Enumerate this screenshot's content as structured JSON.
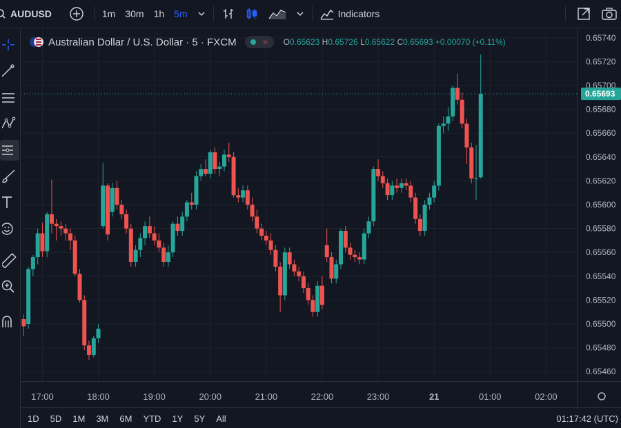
{
  "toolbar": {
    "symbol": "AUDUSD",
    "intervals": [
      "1m",
      "30m",
      "1h",
      "5m"
    ],
    "active_interval": "5m",
    "indicators_label": "Indicators"
  },
  "legend": {
    "title": "Australian Dollar / U.S. Dollar · 5 · FXCM",
    "o_key": "O",
    "o_val": "0.65623",
    "h_key": "H",
    "h_val": "0.65726",
    "l_key": "L",
    "l_val": "0.65622",
    "c_key": "C",
    "c_val": "0.65693",
    "change": "+0.00070 (+0.11%)"
  },
  "bottom": {
    "ranges": [
      "1D",
      "5D",
      "1M",
      "3M",
      "6M",
      "YTD",
      "1Y",
      "5Y",
      "All"
    ],
    "clock": "01:17:42 (UTC)"
  },
  "colors": {
    "up": "#26a69a",
    "down": "#ef5350",
    "background": "#131722",
    "grid": "#1e222d",
    "accent": "#2962ff"
  },
  "chart_data": {
    "type": "candlestick",
    "symbol": "AUDUSD",
    "interval": "5m",
    "y_range": [
      0.65452,
      0.65748
    ],
    "price_ticks": [
      "0.65740",
      "0.65720",
      "0.65700",
      "0.65680",
      "0.65660",
      "0.65640",
      "0.65620",
      "0.65600",
      "0.65580",
      "0.65560",
      "0.65540",
      "0.65520",
      "0.65500",
      "0.65480",
      "0.65460"
    ],
    "current_price": "0.65693",
    "time_ticks": [
      "17:00",
      "18:00",
      "19:00",
      "20:00",
      "21:00",
      "22:00",
      "23:00",
      "21",
      "01:00",
      "02:00"
    ],
    "time_tick_hours": [
      17,
      18,
      19,
      20,
      21,
      22,
      23,
      24,
      25,
      26
    ],
    "x_range_hours": [
      16.625,
      26.55
    ],
    "candles": [
      {
        "h": 16.667,
        "o": 0.65504,
        "hi": 0.65508,
        "l": 0.6549,
        "c": 0.65498
      },
      {
        "h": 16.75,
        "o": 0.655,
        "hi": 0.65548,
        "l": 0.65496,
        "c": 0.65546
      },
      {
        "h": 16.833,
        "o": 0.65546,
        "hi": 0.65558,
        "l": 0.6554,
        "c": 0.65556
      },
      {
        "h": 16.917,
        "o": 0.65556,
        "hi": 0.6558,
        "l": 0.6555,
        "c": 0.65576
      },
      {
        "h": 17.0,
        "o": 0.65576,
        "hi": 0.65585,
        "l": 0.65556,
        "c": 0.65561
      },
      {
        "h": 17.083,
        "o": 0.65561,
        "hi": 0.65594,
        "l": 0.65556,
        "c": 0.65592
      },
      {
        "h": 17.167,
        "o": 0.65592,
        "hi": 0.65621,
        "l": 0.65576,
        "c": 0.65584
      },
      {
        "h": 17.25,
        "o": 0.65584,
        "hi": 0.65588,
        "l": 0.6557,
        "c": 0.65582
      },
      {
        "h": 17.333,
        "o": 0.65582,
        "hi": 0.65586,
        "l": 0.65574,
        "c": 0.6558
      },
      {
        "h": 17.417,
        "o": 0.6558,
        "hi": 0.65584,
        "l": 0.6557,
        "c": 0.65576
      },
      {
        "h": 17.5,
        "o": 0.65576,
        "hi": 0.6558,
        "l": 0.65562,
        "c": 0.6557
      },
      {
        "h": 17.583,
        "o": 0.6557,
        "hi": 0.65574,
        "l": 0.6554,
        "c": 0.65542
      },
      {
        "h": 17.667,
        "o": 0.65542,
        "hi": 0.65546,
        "l": 0.65518,
        "c": 0.6552
      },
      {
        "h": 17.75,
        "o": 0.6552,
        "hi": 0.65524,
        "l": 0.65478,
        "c": 0.65482
      },
      {
        "h": 17.833,
        "o": 0.65482,
        "hi": 0.65486,
        "l": 0.6547,
        "c": 0.65474
      },
      {
        "h": 17.917,
        "o": 0.65474,
        "hi": 0.6549,
        "l": 0.65472,
        "c": 0.65488
      },
      {
        "h": 18.0,
        "o": 0.65488,
        "hi": 0.655,
        "l": 0.65484,
        "c": 0.65496
      },
      {
        "h": 18.083,
        "o": 0.65582,
        "hi": 0.65635,
        "l": 0.6558,
        "c": 0.65616
      },
      {
        "h": 18.167,
        "o": 0.65616,
        "hi": 0.65618,
        "l": 0.6557,
        "c": 0.65575
      },
      {
        "h": 18.25,
        "o": 0.65594,
        "hi": 0.65618,
        "l": 0.6559,
        "c": 0.65614
      },
      {
        "h": 18.333,
        "o": 0.65614,
        "hi": 0.6562,
        "l": 0.65596,
        "c": 0.656
      },
      {
        "h": 18.417,
        "o": 0.656,
        "hi": 0.65604,
        "l": 0.65588,
        "c": 0.65592
      },
      {
        "h": 18.5,
        "o": 0.65592,
        "hi": 0.65596,
        "l": 0.65576,
        "c": 0.6558
      },
      {
        "h": 18.583,
        "o": 0.6558,
        "hi": 0.65584,
        "l": 0.65548,
        "c": 0.65552
      },
      {
        "h": 18.667,
        "o": 0.65552,
        "hi": 0.65566,
        "l": 0.65548,
        "c": 0.65562
      },
      {
        "h": 18.75,
        "o": 0.65562,
        "hi": 0.65576,
        "l": 0.65556,
        "c": 0.65572
      },
      {
        "h": 18.833,
        "o": 0.65572,
        "hi": 0.65586,
        "l": 0.65566,
        "c": 0.65582
      },
      {
        "h": 18.917,
        "o": 0.65582,
        "hi": 0.6559,
        "l": 0.65572,
        "c": 0.65576
      },
      {
        "h": 19.0,
        "o": 0.65576,
        "hi": 0.65582,
        "l": 0.65566,
        "c": 0.6557
      },
      {
        "h": 19.083,
        "o": 0.6557,
        "hi": 0.65576,
        "l": 0.6556,
        "c": 0.65564
      },
      {
        "h": 19.167,
        "o": 0.65564,
        "hi": 0.65568,
        "l": 0.65548,
        "c": 0.65552
      },
      {
        "h": 19.25,
        "o": 0.65552,
        "hi": 0.65566,
        "l": 0.65548,
        "c": 0.6556
      },
      {
        "h": 19.333,
        "o": 0.6556,
        "hi": 0.65586,
        "l": 0.65556,
        "c": 0.65584
      },
      {
        "h": 19.417,
        "o": 0.65584,
        "hi": 0.6559,
        "l": 0.65574,
        "c": 0.65578
      },
      {
        "h": 19.5,
        "o": 0.65578,
        "hi": 0.65594,
        "l": 0.65574,
        "c": 0.6559
      },
      {
        "h": 19.583,
        "o": 0.6559,
        "hi": 0.65604,
        "l": 0.65586,
        "c": 0.65602
      },
      {
        "h": 19.667,
        "o": 0.65602,
        "hi": 0.6561,
        "l": 0.65596,
        "c": 0.656
      },
      {
        "h": 19.75,
        "o": 0.656,
        "hi": 0.65628,
        "l": 0.65596,
        "c": 0.65624
      },
      {
        "h": 19.833,
        "o": 0.65624,
        "hi": 0.65634,
        "l": 0.6562,
        "c": 0.6563
      },
      {
        "h": 19.917,
        "o": 0.6563,
        "hi": 0.65638,
        "l": 0.65624,
        "c": 0.65626
      },
      {
        "h": 20.0,
        "o": 0.65626,
        "hi": 0.65646,
        "l": 0.65622,
        "c": 0.65644
      },
      {
        "h": 20.083,
        "o": 0.65644,
        "hi": 0.65648,
        "l": 0.65626,
        "c": 0.6563
      },
      {
        "h": 20.167,
        "o": 0.6563,
        "hi": 0.65636,
        "l": 0.65624,
        "c": 0.65632
      },
      {
        "h": 20.25,
        "o": 0.65632,
        "hi": 0.65646,
        "l": 0.65628,
        "c": 0.65642
      },
      {
        "h": 20.333,
        "o": 0.65642,
        "hi": 0.65652,
        "l": 0.65636,
        "c": 0.6564
      },
      {
        "h": 20.417,
        "o": 0.6564,
        "hi": 0.65644,
        "l": 0.65606,
        "c": 0.65608
      },
      {
        "h": 20.5,
        "o": 0.65608,
        "hi": 0.65614,
        "l": 0.65602,
        "c": 0.65606
      },
      {
        "h": 20.583,
        "o": 0.65606,
        "hi": 0.65616,
        "l": 0.65602,
        "c": 0.65612
      },
      {
        "h": 20.667,
        "o": 0.65612,
        "hi": 0.65616,
        "l": 0.65596,
        "c": 0.656
      },
      {
        "h": 20.75,
        "o": 0.656,
        "hi": 0.65606,
        "l": 0.65586,
        "c": 0.6559
      },
      {
        "h": 20.833,
        "o": 0.6559,
        "hi": 0.65596,
        "l": 0.65576,
        "c": 0.6558
      },
      {
        "h": 20.917,
        "o": 0.6558,
        "hi": 0.65584,
        "l": 0.6557,
        "c": 0.65574
      },
      {
        "h": 21.0,
        "o": 0.65574,
        "hi": 0.65578,
        "l": 0.65566,
        "c": 0.6557
      },
      {
        "h": 21.083,
        "o": 0.6557,
        "hi": 0.65576,
        "l": 0.65558,
        "c": 0.65562
      },
      {
        "h": 21.167,
        "o": 0.65562,
        "hi": 0.65566,
        "l": 0.65544,
        "c": 0.65548
      },
      {
        "h": 21.25,
        "o": 0.65548,
        "hi": 0.65552,
        "l": 0.6551,
        "c": 0.65524
      },
      {
        "h": 21.333,
        "o": 0.65524,
        "hi": 0.65564,
        "l": 0.6552,
        "c": 0.6556
      },
      {
        "h": 21.417,
        "o": 0.6556,
        "hi": 0.65564,
        "l": 0.65546,
        "c": 0.6555
      },
      {
        "h": 21.5,
        "o": 0.6555,
        "hi": 0.65554,
        "l": 0.6554,
        "c": 0.65544
      },
      {
        "h": 21.583,
        "o": 0.65544,
        "hi": 0.65548,
        "l": 0.65536,
        "c": 0.6554
      },
      {
        "h": 21.667,
        "o": 0.6554,
        "hi": 0.65544,
        "l": 0.65526,
        "c": 0.6553
      },
      {
        "h": 21.75,
        "o": 0.6553,
        "hi": 0.65534,
        "l": 0.65516,
        "c": 0.6552
      },
      {
        "h": 21.833,
        "o": 0.6552,
        "hi": 0.65524,
        "l": 0.65506,
        "c": 0.6551
      },
      {
        "h": 21.917,
        "o": 0.6551,
        "hi": 0.65536,
        "l": 0.65506,
        "c": 0.65532
      },
      {
        "h": 22.0,
        "o": 0.65532,
        "hi": 0.6554,
        "l": 0.65512,
        "c": 0.65516
      },
      {
        "h": 22.083,
        "o": 0.65566,
        "hi": 0.6558,
        "l": 0.65552,
        "c": 0.65556
      },
      {
        "h": 22.167,
        "o": 0.65556,
        "hi": 0.6556,
        "l": 0.65534,
        "c": 0.65538
      },
      {
        "h": 22.25,
        "o": 0.65538,
        "hi": 0.65554,
        "l": 0.65534,
        "c": 0.6555
      },
      {
        "h": 22.333,
        "o": 0.6555,
        "hi": 0.6558,
        "l": 0.65546,
        "c": 0.65578
      },
      {
        "h": 22.417,
        "o": 0.65578,
        "hi": 0.65582,
        "l": 0.6556,
        "c": 0.65564
      },
      {
        "h": 22.5,
        "o": 0.65564,
        "hi": 0.65568,
        "l": 0.65554,
        "c": 0.65558
      },
      {
        "h": 22.583,
        "o": 0.65558,
        "hi": 0.65562,
        "l": 0.65552,
        "c": 0.65556
      },
      {
        "h": 22.667,
        "o": 0.65556,
        "hi": 0.6556,
        "l": 0.6555,
        "c": 0.65554
      },
      {
        "h": 22.75,
        "o": 0.65554,
        "hi": 0.6558,
        "l": 0.6555,
        "c": 0.65576
      },
      {
        "h": 22.833,
        "o": 0.65576,
        "hi": 0.6559,
        "l": 0.65572,
        "c": 0.65586
      },
      {
        "h": 22.917,
        "o": 0.65586,
        "hi": 0.65632,
        "l": 0.65582,
        "c": 0.6563
      },
      {
        "h": 23.0,
        "o": 0.6563,
        "hi": 0.65638,
        "l": 0.6562,
        "c": 0.65624
      },
      {
        "h": 23.083,
        "o": 0.65624,
        "hi": 0.65628,
        "l": 0.65614,
        "c": 0.65618
      },
      {
        "h": 23.167,
        "o": 0.65618,
        "hi": 0.65622,
        "l": 0.65604,
        "c": 0.65608
      },
      {
        "h": 23.25,
        "o": 0.65608,
        "hi": 0.6562,
        "l": 0.65604,
        "c": 0.65616
      },
      {
        "h": 23.333,
        "o": 0.65616,
        "hi": 0.65622,
        "l": 0.6561,
        "c": 0.65614
      },
      {
        "h": 23.417,
        "o": 0.65614,
        "hi": 0.65622,
        "l": 0.6561,
        "c": 0.65618
      },
      {
        "h": 23.5,
        "o": 0.65618,
        "hi": 0.65622,
        "l": 0.65612,
        "c": 0.65616
      },
      {
        "h": 23.583,
        "o": 0.65616,
        "hi": 0.6562,
        "l": 0.65602,
        "c": 0.65606
      },
      {
        "h": 23.667,
        "o": 0.65606,
        "hi": 0.6561,
        "l": 0.65584,
        "c": 0.65588
      },
      {
        "h": 23.75,
        "o": 0.65588,
        "hi": 0.65592,
        "l": 0.65574,
        "c": 0.65578
      },
      {
        "h": 23.833,
        "o": 0.65578,
        "hi": 0.65604,
        "l": 0.65574,
        "c": 0.656
      },
      {
        "h": 23.917,
        "o": 0.656,
        "hi": 0.6561,
        "l": 0.65596,
        "c": 0.65606
      },
      {
        "h": 24.0,
        "o": 0.65606,
        "hi": 0.6562,
        "l": 0.65602,
        "c": 0.65616
      },
      {
        "h": 24.083,
        "o": 0.65616,
        "hi": 0.65668,
        "l": 0.65612,
        "c": 0.65666
      },
      {
        "h": 24.167,
        "o": 0.65666,
        "hi": 0.65674,
        "l": 0.6566,
        "c": 0.65668
      },
      {
        "h": 24.25,
        "o": 0.65668,
        "hi": 0.65682,
        "l": 0.65662,
        "c": 0.65674
      },
      {
        "h": 24.333,
        "o": 0.65674,
        "hi": 0.657,
        "l": 0.6567,
        "c": 0.65698
      },
      {
        "h": 24.417,
        "o": 0.65698,
        "hi": 0.6571,
        "l": 0.65684,
        "c": 0.65688
      },
      {
        "h": 24.5,
        "o": 0.65688,
        "hi": 0.65694,
        "l": 0.65664,
        "c": 0.65668
      },
      {
        "h": 24.583,
        "o": 0.65668,
        "hi": 0.65672,
        "l": 0.65634,
        "c": 0.65648
      },
      {
        "h": 24.667,
        "o": 0.65648,
        "hi": 0.65652,
        "l": 0.65618,
        "c": 0.65622
      },
      {
        "h": 24.75,
        "o": 0.65622,
        "hi": 0.6565,
        "l": 0.65604,
        "c": 0.65622
      },
      {
        "h": 24.833,
        "o": 0.65623,
        "hi": 0.65726,
        "l": 0.65622,
        "c": 0.65693
      }
    ]
  }
}
